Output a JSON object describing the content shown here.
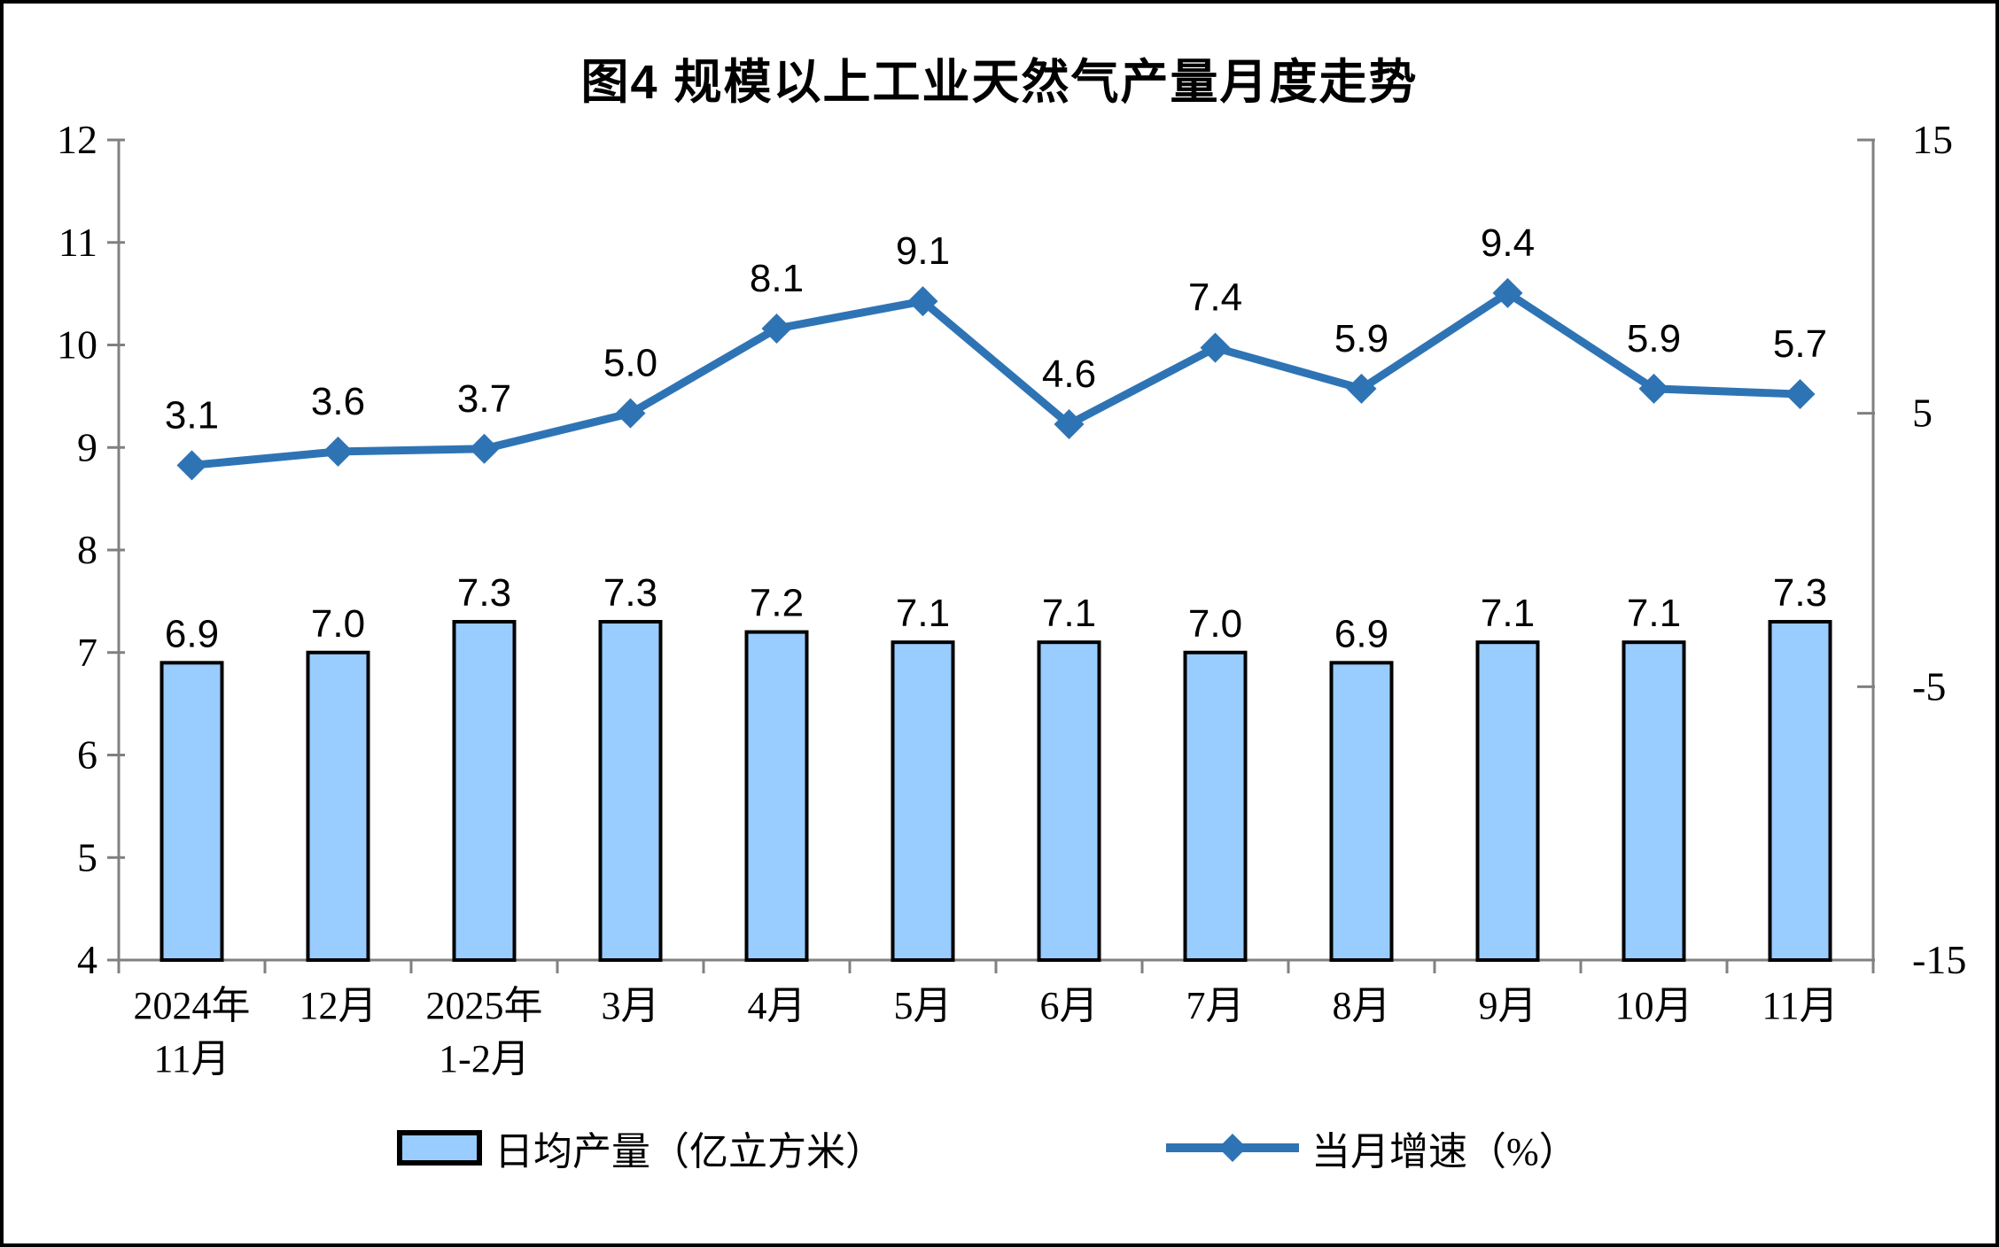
{
  "title": "图4 规模以上工业天然气产量月度走势",
  "colors": {
    "bar_fill": "#99CCFF",
    "bar_border": "#000000",
    "line": "#2E74B5",
    "axis": "#808080",
    "text": "#000000",
    "background": "#FFFFFF"
  },
  "chart_data": {
    "type": "combo-bar-line",
    "title": "图4 规模以上工业天然气产量月度走势",
    "categories": [
      [
        "2024年",
        "11月"
      ],
      [
        "12月"
      ],
      [
        "2025年",
        "1-2月"
      ],
      [
        "3月"
      ],
      [
        "4月"
      ],
      [
        "5月"
      ],
      [
        "6月"
      ],
      [
        "7月"
      ],
      [
        "8月"
      ],
      [
        "9月"
      ],
      [
        "10月"
      ],
      [
        "11月"
      ]
    ],
    "series": [
      {
        "name": "日均产量（亿立方米）",
        "type": "bar",
        "axis": "left",
        "color": "#99CCFF",
        "border_color": "#000000",
        "values": [
          6.9,
          7.0,
          7.3,
          7.3,
          7.2,
          7.1,
          7.1,
          7.0,
          6.9,
          7.1,
          7.1,
          7.3
        ],
        "labels": [
          "6.9",
          "7.0",
          "7.3",
          "7.3",
          "7.2",
          "7.1",
          "7.1",
          "7.0",
          "6.9",
          "7.1",
          "7.1",
          "7.3"
        ]
      },
      {
        "name": "当月增速（%）",
        "type": "line",
        "axis": "right",
        "color": "#2E74B5",
        "marker": "diamond",
        "values": [
          3.1,
          3.6,
          3.7,
          5.0,
          8.1,
          9.1,
          4.6,
          7.4,
          5.9,
          9.4,
          5.9,
          5.7
        ],
        "labels": [
          "3.1",
          "3.6",
          "3.7",
          "5.0",
          "8.1",
          "9.1",
          "4.6",
          "7.4",
          "5.9",
          "9.4",
          "5.9",
          "5.7"
        ]
      }
    ],
    "left_axis": {
      "min": 4,
      "max": 12,
      "step": 1,
      "tick_labels": [
        "4",
        "5",
        "6",
        "7",
        "8",
        "9",
        "10",
        "11",
        "12"
      ]
    },
    "right_axis": {
      "min": -15,
      "max": 15,
      "step": 10,
      "tick_values": [
        -15,
        -5,
        5,
        15
      ],
      "tick_labels": [
        "-15",
        "-5",
        "5",
        "15"
      ]
    },
    "grid": false,
    "legend_position": "bottom"
  }
}
